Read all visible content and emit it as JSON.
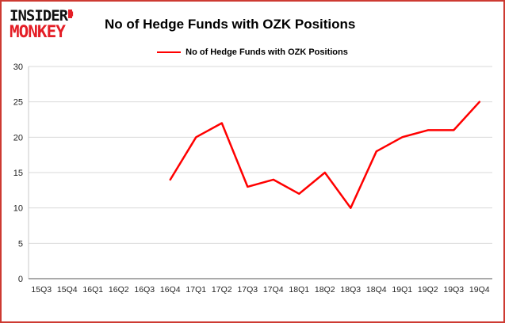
{
  "brand": {
    "line1": "INSIDER",
    "line2": "MONKEY",
    "accent_color": "#e41e26"
  },
  "header": {
    "title": "No of Hedge Funds with OZK Positions"
  },
  "legend": {
    "label": "No of Hedge Funds with OZK Positions",
    "color": "#ff0000"
  },
  "chart_data": {
    "type": "line",
    "title": "No of Hedge Funds with OZK Positions",
    "xlabel": "",
    "ylabel": "",
    "categories": [
      "15Q3",
      "15Q4",
      "16Q1",
      "16Q2",
      "16Q3",
      "16Q4",
      "17Q1",
      "17Q2",
      "17Q3",
      "17Q4",
      "18Q1",
      "18Q2",
      "18Q3",
      "18Q4",
      "19Q1",
      "19Q2",
      "19Q3",
      "19Q4"
    ],
    "series": [
      {
        "name": "No of Hedge Funds with OZK Positions",
        "color": "#ff0000",
        "values": [
          null,
          null,
          null,
          null,
          null,
          14,
          20,
          22,
          13,
          14,
          12,
          15,
          10,
          18,
          20,
          21,
          21,
          25
        ]
      }
    ],
    "ylim": [
      0,
      30
    ],
    "yticks": [
      0,
      5,
      10,
      15,
      20,
      25,
      30
    ],
    "grid": true,
    "legend_position": "top-center",
    "frame_border_color": "#cd3a32",
    "gridline_color": "#d9d9d9"
  }
}
